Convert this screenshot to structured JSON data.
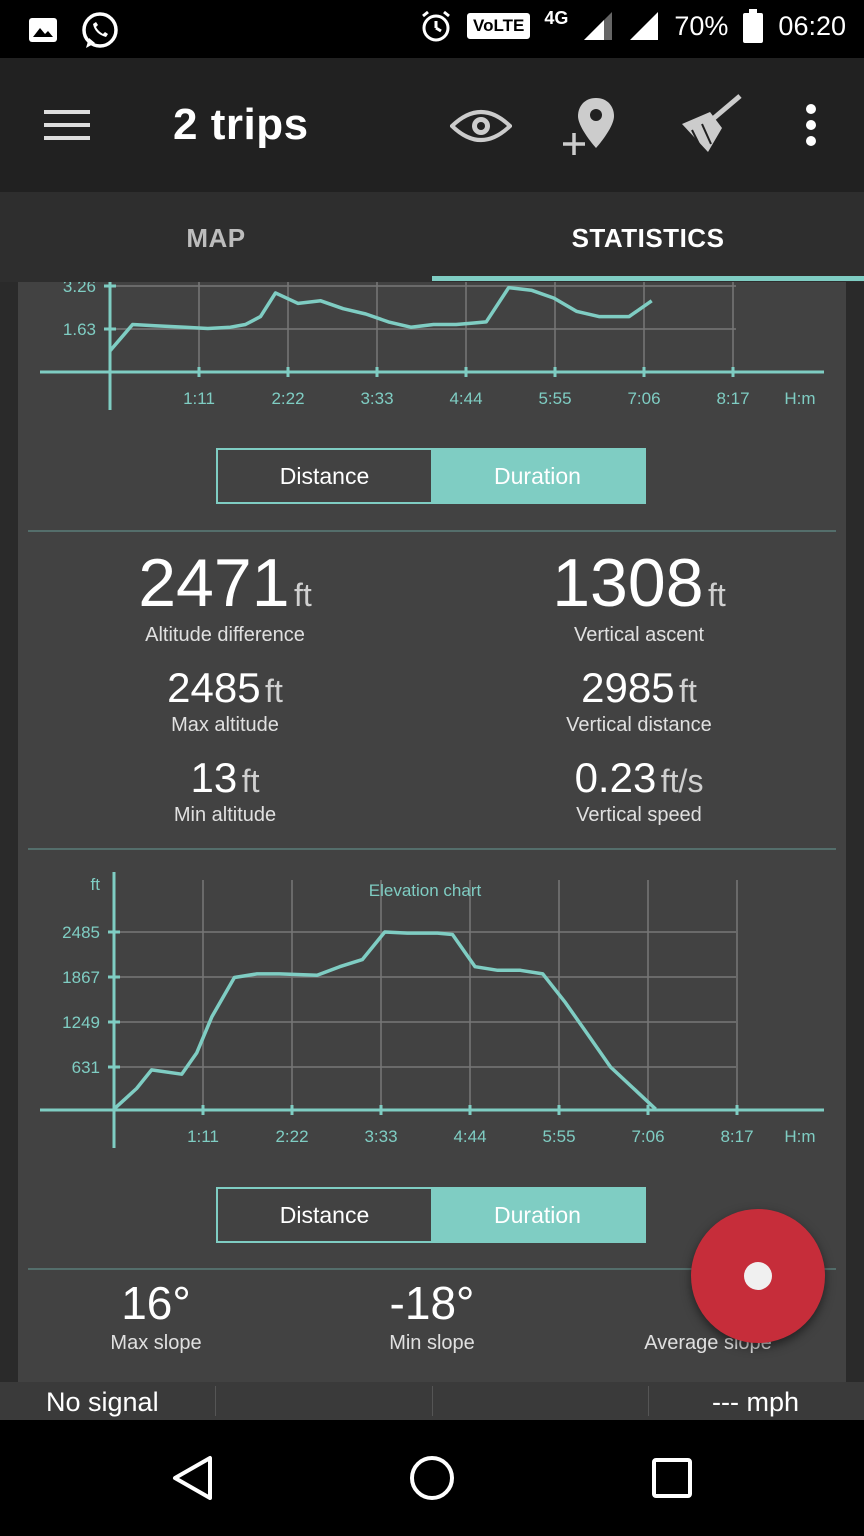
{
  "status_bar": {
    "volte": "VoLTE",
    "network": "4G",
    "battery": "70%",
    "time": "06:20"
  },
  "toolbar": {
    "title": "2 trips",
    "icons": [
      "menu-icon",
      "eye-icon",
      "add-location-icon",
      "broom-icon",
      "more-vert-icon"
    ]
  },
  "tabs": [
    {
      "label": "MAP",
      "selected": false
    },
    {
      "label": "STATISTICS",
      "selected": true
    }
  ],
  "accent_color": "#7fcdc3",
  "toggle1": {
    "distance_label": "Distance",
    "duration_label": "Duration",
    "selected": "Duration"
  },
  "toggle2": {
    "distance_label": "Distance",
    "duration_label": "Duration",
    "selected": "Duration"
  },
  "stats": {
    "altitude_difference": {
      "value": "2471",
      "unit": "ft",
      "label": "Altitude difference"
    },
    "vertical_ascent": {
      "value": "1308",
      "unit": "ft",
      "label": "Vertical ascent"
    },
    "max_altitude": {
      "value": "2485",
      "unit": "ft",
      "label": "Max altitude"
    },
    "vertical_distance": {
      "value": "2985",
      "unit": "ft",
      "label": "Vertical distance"
    },
    "min_altitude": {
      "value": "13",
      "unit": "ft",
      "label": "Min altitude"
    },
    "vertical_speed": {
      "value": "0.23",
      "unit": "ft/s",
      "label": "Vertical speed"
    }
  },
  "slopes": {
    "max": {
      "value": "16°",
      "label": "Max slope"
    },
    "min": {
      "value": "-18°",
      "label": "Min slope"
    },
    "avg": {
      "value": "-",
      "label": "Average slope"
    }
  },
  "bottom_bar": {
    "signal": "No signal",
    "speed": "--- mph"
  },
  "chart_data": [
    {
      "type": "line",
      "title": "",
      "xlabel": "H:m",
      "ylabel": "",
      "x_ticks": [
        "1:11",
        "2:22",
        "3:33",
        "4:44",
        "5:55",
        "7:06",
        "8:17"
      ],
      "y_ticks": [
        "1.63",
        "3.26"
      ],
      "series": [
        {
          "x": [
            0,
            0.3,
            0.6,
            1.0,
            1.3,
            1.6,
            1.8,
            2.0,
            2.2,
            2.5,
            2.8,
            3.1,
            3.4,
            3.7,
            4.0,
            4.3,
            4.6,
            4.8,
            5.0,
            5.3,
            5.6,
            5.9,
            6.2,
            6.5,
            6.9,
            7.2
          ],
          "y": [
            0.8,
            1.8,
            1.75,
            1.7,
            1.65,
            1.7,
            1.8,
            2.1,
            3.0,
            2.6,
            2.7,
            2.4,
            2.2,
            1.9,
            1.7,
            1.8,
            1.8,
            1.85,
            1.9,
            3.2,
            3.1,
            2.8,
            2.3,
            2.1,
            2.1,
            2.7
          ]
        }
      ]
    },
    {
      "type": "line",
      "title": "Elevation chart",
      "xlabel": "H:m",
      "ylabel": "ft",
      "x_ticks": [
        "1:11",
        "2:22",
        "3:33",
        "4:44",
        "5:55",
        "7:06",
        "8:17"
      ],
      "y_ticks": [
        "631",
        "1249",
        "1867",
        "2485"
      ],
      "ylim": [
        0,
        2485
      ],
      "series": [
        {
          "x": [
            0,
            0.3,
            0.5,
            0.9,
            1.1,
            1.3,
            1.6,
            1.9,
            2.2,
            2.7,
            3.0,
            3.3,
            3.6,
            3.9,
            4.3,
            4.5,
            4.8,
            5.1,
            5.4,
            5.7,
            6.0,
            6.3,
            6.6,
            7.2
          ],
          "y": [
            13,
            300,
            560,
            500,
            800,
            1300,
            1850,
            1900,
            1900,
            1880,
            2000,
            2100,
            2485,
            2470,
            2470,
            2450,
            2000,
            1950,
            1950,
            1900,
            1500,
            1050,
            600,
            13
          ]
        }
      ]
    }
  ]
}
